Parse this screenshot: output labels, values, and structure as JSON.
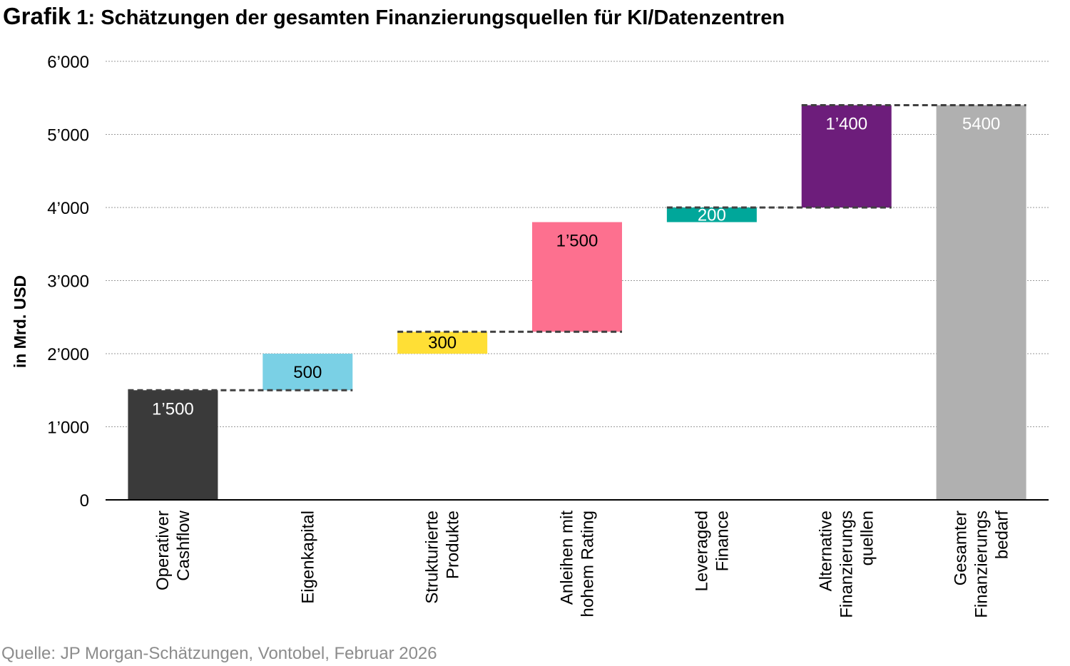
{
  "title": {
    "lead": "Grafik",
    "rest": " 1: Schätzungen der gesamten Finanzierungsquellen für KI/Datenzentren"
  },
  "source": "Quelle: JP Morgan-Schätzungen, Vontobel, Februar 2026",
  "chart_data": {
    "type": "bar",
    "subtype": "waterfall",
    "ylabel": "in Mrd. USD",
    "ylim": [
      0,
      6000
    ],
    "yticks": [
      0,
      1000,
      2000,
      3000,
      4000,
      5000,
      6000
    ],
    "ytick_labels": [
      "0",
      "1’000",
      "2’000",
      "3’000",
      "4’000",
      "5’000",
      "6’000"
    ],
    "grid": true,
    "categories": [
      [
        "Operativer",
        "Cashflow"
      ],
      [
        "Eigenkapital"
      ],
      [
        "Strukturierte",
        "Produkte"
      ],
      [
        "Anleihen mit",
        "hohem Rating"
      ],
      [
        "Leveraged",
        "Finance"
      ],
      [
        "Alternative",
        "Finanzierungs",
        "quellen"
      ],
      [
        "Gesamter",
        "Finanzierungs",
        "bedarf"
      ]
    ],
    "values": [
      1500,
      500,
      300,
      1500,
      200,
      1400,
      5400
    ],
    "bases": [
      0,
      1500,
      2000,
      2300,
      3800,
      4000,
      0
    ],
    "data_labels": [
      "1’500",
      "500",
      "300",
      "1’500",
      "200",
      "1’400",
      "5400"
    ],
    "colors": [
      "#3a3a3a",
      "#7ad0e5",
      "#ffdf35",
      "#fd708f",
      "#00a79a",
      "#6d1d7b",
      "#b0b0b0"
    ],
    "label_colors": [
      "#ffffff",
      "#000000",
      "#000000",
      "#000000",
      "#ffffff",
      "#ffffff",
      "#ffffff"
    ],
    "connectors": [
      1500,
      2300,
      4000,
      5400
    ]
  }
}
